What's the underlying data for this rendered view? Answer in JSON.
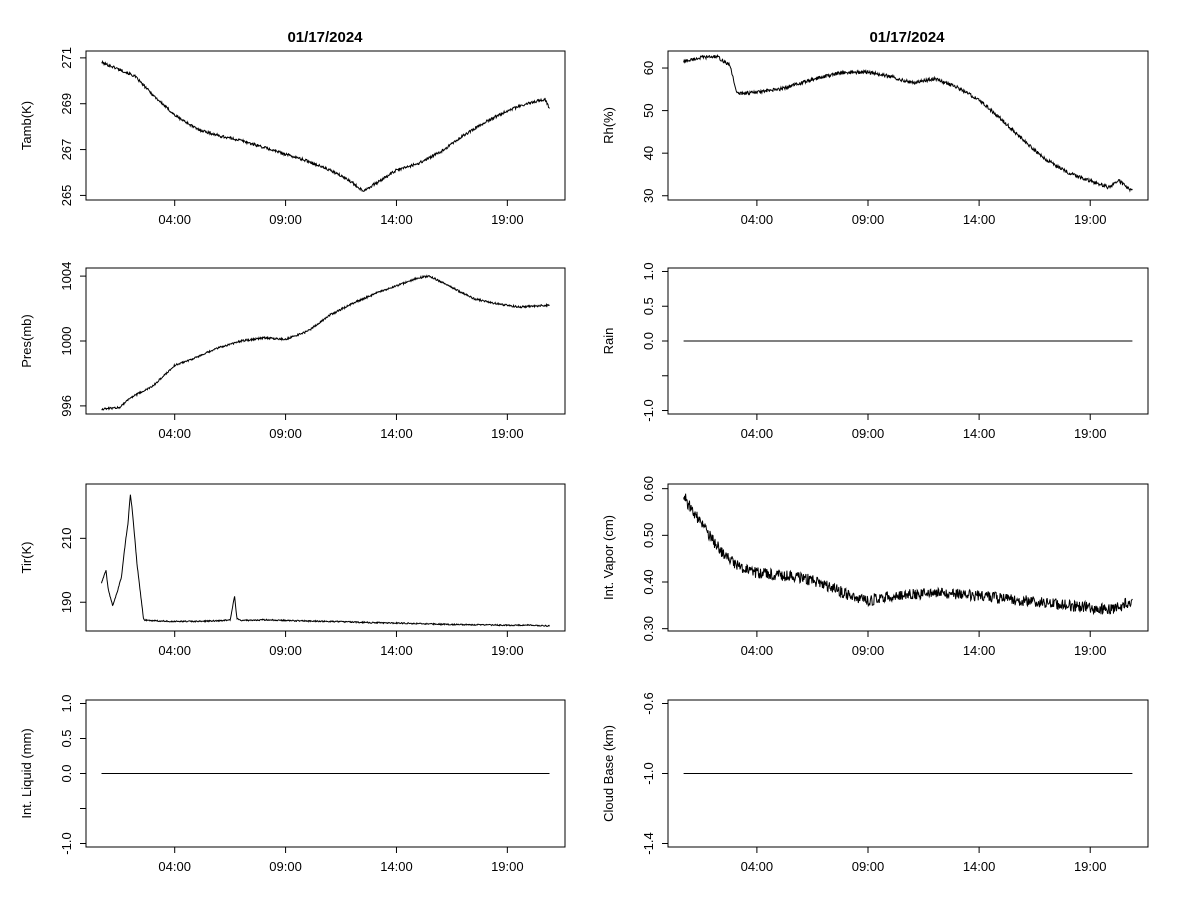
{
  "figure": {
    "title_left": "01/17/2024",
    "title_right": "01/17/2024"
  },
  "chart_data": [
    {
      "id": "tamb",
      "type": "line",
      "ylabel": "Tamb(K)",
      "xlim": [
        0,
        21.6
      ],
      "ylim": [
        264.8,
        271.3
      ],
      "x_tick_values": [
        4,
        9,
        14,
        19
      ],
      "x_tick_labels": [
        "04:00",
        "09:00",
        "14:00",
        "19:00"
      ],
      "y_tick_values": [
        265,
        267,
        269,
        271
      ],
      "y_tick_labels": [
        "265",
        "267",
        "269",
        "271"
      ],
      "series": [
        {
          "name": "Tamb",
          "x": [
            0.7,
            1.5,
            2.2,
            3.0,
            4.0,
            5.0,
            6.0,
            7.0,
            8.0,
            9.0,
            10.0,
            11.0,
            11.8,
            12.5,
            13.2,
            14.0,
            15.0,
            16.0,
            17.0,
            18.0,
            19.0,
            19.9,
            20.7,
            20.9
          ],
          "y": [
            270.8,
            270.5,
            270.2,
            269.4,
            268.5,
            267.9,
            267.6,
            267.4,
            267.1,
            266.8,
            266.5,
            266.1,
            265.7,
            265.2,
            265.6,
            266.1,
            266.4,
            266.9,
            267.6,
            268.2,
            268.7,
            269.0,
            269.2,
            268.8
          ],
          "noise": 0.06
        }
      ]
    },
    {
      "id": "rh",
      "type": "line",
      "ylabel": "Rh(%)",
      "xlim": [
        0,
        21.6
      ],
      "ylim": [
        29,
        64
      ],
      "x_tick_values": [
        4,
        9,
        14,
        19
      ],
      "x_tick_labels": [
        "04:00",
        "09:00",
        "14:00",
        "19:00"
      ],
      "y_tick_values": [
        30,
        40,
        50,
        60
      ],
      "y_tick_labels": [
        "30",
        "40",
        "50",
        "60"
      ],
      "series": [
        {
          "name": "Rh",
          "x": [
            0.7,
            1.5,
            2.2,
            2.8,
            3.1,
            4.0,
            5.0,
            6.0,
            7.0,
            8.0,
            9.0,
            10.0,
            11.0,
            12.0,
            13.0,
            14.0,
            15.0,
            16.0,
            17.0,
            18.0,
            19.0,
            19.8,
            20.3,
            20.9
          ],
          "y": [
            61.5,
            62.5,
            62.7,
            60.5,
            54.0,
            54.3,
            55.0,
            56.5,
            58.0,
            59.0,
            59.0,
            58.0,
            56.5,
            57.5,
            55.5,
            52.5,
            48.0,
            43.0,
            38.5,
            35.5,
            33.5,
            32.0,
            33.5,
            31.0
          ],
          "noise": 0.4
        }
      ]
    },
    {
      "id": "pres",
      "type": "line",
      "ylabel": "Pres(mb)",
      "xlim": [
        0,
        21.6
      ],
      "ylim": [
        995.5,
        1004.5
      ],
      "x_tick_values": [
        4,
        9,
        14,
        19
      ],
      "x_tick_labels": [
        "04:00",
        "09:00",
        "14:00",
        "19:00"
      ],
      "y_tick_values": [
        996,
        1000,
        1004
      ],
      "y_tick_labels": [
        "996",
        "1000",
        "1004"
      ],
      "series": [
        {
          "name": "Pres",
          "x": [
            0.7,
            1.5,
            2.0,
            3.0,
            4.0,
            5.0,
            6.0,
            7.0,
            8.0,
            9.0,
            10.0,
            11.0,
            12.0,
            13.0,
            14.0,
            15.0,
            15.5,
            16.5,
            17.5,
            18.5,
            19.5,
            20.9
          ],
          "y": [
            995.8,
            995.9,
            996.5,
            997.2,
            998.5,
            999.0,
            999.6,
            1000.0,
            1000.2,
            1000.1,
            1000.6,
            1001.6,
            1002.3,
            1002.9,
            1003.4,
            1003.9,
            1004.0,
            1003.3,
            1002.6,
            1002.3,
            1002.1,
            1002.2
          ],
          "noise": 0.06
        }
      ]
    },
    {
      "id": "rain",
      "type": "line",
      "ylabel": "Rain",
      "xlim": [
        0,
        21.6
      ],
      "ylim": [
        -1.05,
        1.05
      ],
      "x_tick_values": [
        4,
        9,
        14,
        19
      ],
      "x_tick_labels": [
        "04:00",
        "09:00",
        "14:00",
        "19:00"
      ],
      "y_tick_values": [
        -1.0,
        -0.5,
        0.0,
        0.5,
        1.0
      ],
      "y_tick_labels": [
        "-1.0",
        "",
        "0.0",
        "0.5",
        "1.0"
      ],
      "series": [
        {
          "name": "Rain",
          "x": [
            0.7,
            20.9
          ],
          "y": [
            0,
            0
          ],
          "noise": 0
        }
      ]
    },
    {
      "id": "tir",
      "type": "line",
      "ylabel": "Tir(K)",
      "xlim": [
        0,
        21.6
      ],
      "ylim": [
        181,
        227
      ],
      "x_tick_values": [
        4,
        9,
        14,
        19
      ],
      "x_tick_labels": [
        "04:00",
        "09:00",
        "14:00",
        "19:00"
      ],
      "y_tick_values": [
        190,
        210
      ],
      "y_tick_labels": [
        "190",
        "210"
      ],
      "series": [
        {
          "name": "Tir",
          "x": [
            0.7,
            0.9,
            1.0,
            1.2,
            1.4,
            1.6,
            1.8,
            1.9,
            2.0,
            2.1,
            2.2,
            2.3,
            2.4,
            2.6,
            2.8,
            3.0,
            4.0,
            5.0,
            6.0,
            6.5,
            6.7,
            6.8,
            7.0,
            8.0,
            9.0,
            10.0,
            11.0,
            12.0,
            13.0,
            14.0,
            15.0,
            16.0,
            17.0,
            18.0,
            19.0,
            20.0,
            20.9
          ],
          "y": [
            196,
            200,
            194,
            189,
            193,
            198,
            210,
            215,
            224,
            218,
            210,
            202,
            196,
            184.5,
            184.3,
            184.2,
            184.0,
            184.0,
            184.2,
            184.5,
            192.0,
            185.0,
            184.3,
            184.5,
            184.3,
            184.1,
            184.0,
            183.8,
            183.6,
            183.5,
            183.3,
            183.1,
            183.0,
            182.9,
            182.8,
            182.8,
            182.6
          ],
          "noise": 0.2
        }
      ]
    },
    {
      "id": "vapor",
      "type": "line",
      "ylabel": "Int. Vapor (cm)",
      "xlim": [
        0,
        21.6
      ],
      "ylim": [
        0.295,
        0.61
      ],
      "x_tick_values": [
        4,
        9,
        14,
        19
      ],
      "x_tick_labels": [
        "04:00",
        "09:00",
        "14:00",
        "19:00"
      ],
      "y_tick_values": [
        0.3,
        0.4,
        0.5,
        0.6
      ],
      "y_tick_labels": [
        "0.30",
        "0.40",
        "0.50",
        "0.60"
      ],
      "series": [
        {
          "name": "Int. Vapor",
          "x": [
            0.7,
            1.0,
            1.5,
            2.0,
            2.5,
            3.0,
            3.5,
            4.0,
            5.0,
            6.0,
            7.0,
            8.0,
            8.5,
            9.0,
            10.0,
            11.0,
            12.0,
            13.0,
            14.0,
            15.0,
            16.0,
            17.0,
            18.0,
            19.0,
            20.0,
            20.9
          ],
          "y": [
            0.585,
            0.56,
            0.525,
            0.49,
            0.46,
            0.44,
            0.425,
            0.42,
            0.415,
            0.41,
            0.395,
            0.375,
            0.365,
            0.36,
            0.37,
            0.375,
            0.375,
            0.375,
            0.37,
            0.365,
            0.36,
            0.355,
            0.35,
            0.345,
            0.34,
            0.36
          ],
          "noise": 0.012
        }
      ]
    },
    {
      "id": "liquid",
      "type": "line",
      "ylabel": "Int. Liquid (mm)",
      "xlim": [
        0,
        21.6
      ],
      "ylim": [
        -1.05,
        1.05
      ],
      "x_tick_values": [
        4,
        9,
        14,
        19
      ],
      "x_tick_labels": [
        "04:00",
        "09:00",
        "14:00",
        "19:00"
      ],
      "y_tick_values": [
        -1.0,
        -0.5,
        0.0,
        0.5,
        1.0
      ],
      "y_tick_labels": [
        "-1.0",
        "",
        "0.0",
        "0.5",
        "1.0"
      ],
      "series": [
        {
          "name": "Int. Liquid",
          "x": [
            0.7,
            20.9
          ],
          "y": [
            0,
            0
          ],
          "noise": 0
        }
      ]
    },
    {
      "id": "cloudbase",
      "type": "line",
      "ylabel": "Cloud Base (km)",
      "xlim": [
        0,
        21.6
      ],
      "ylim": [
        -1.42,
        -0.58
      ],
      "x_tick_values": [
        4,
        9,
        14,
        19
      ],
      "x_tick_labels": [
        "04:00",
        "09:00",
        "14:00",
        "19:00"
      ],
      "y_tick_values": [
        -1.4,
        -1.0,
        -0.6
      ],
      "y_tick_labels": [
        "-1.4",
        "-1.0",
        "-0.6"
      ],
      "series": [
        {
          "name": "Cloud Base",
          "x": [
            0.7,
            20.9
          ],
          "y": [
            -1.0,
            -1.0
          ],
          "noise": 0
        }
      ]
    }
  ]
}
